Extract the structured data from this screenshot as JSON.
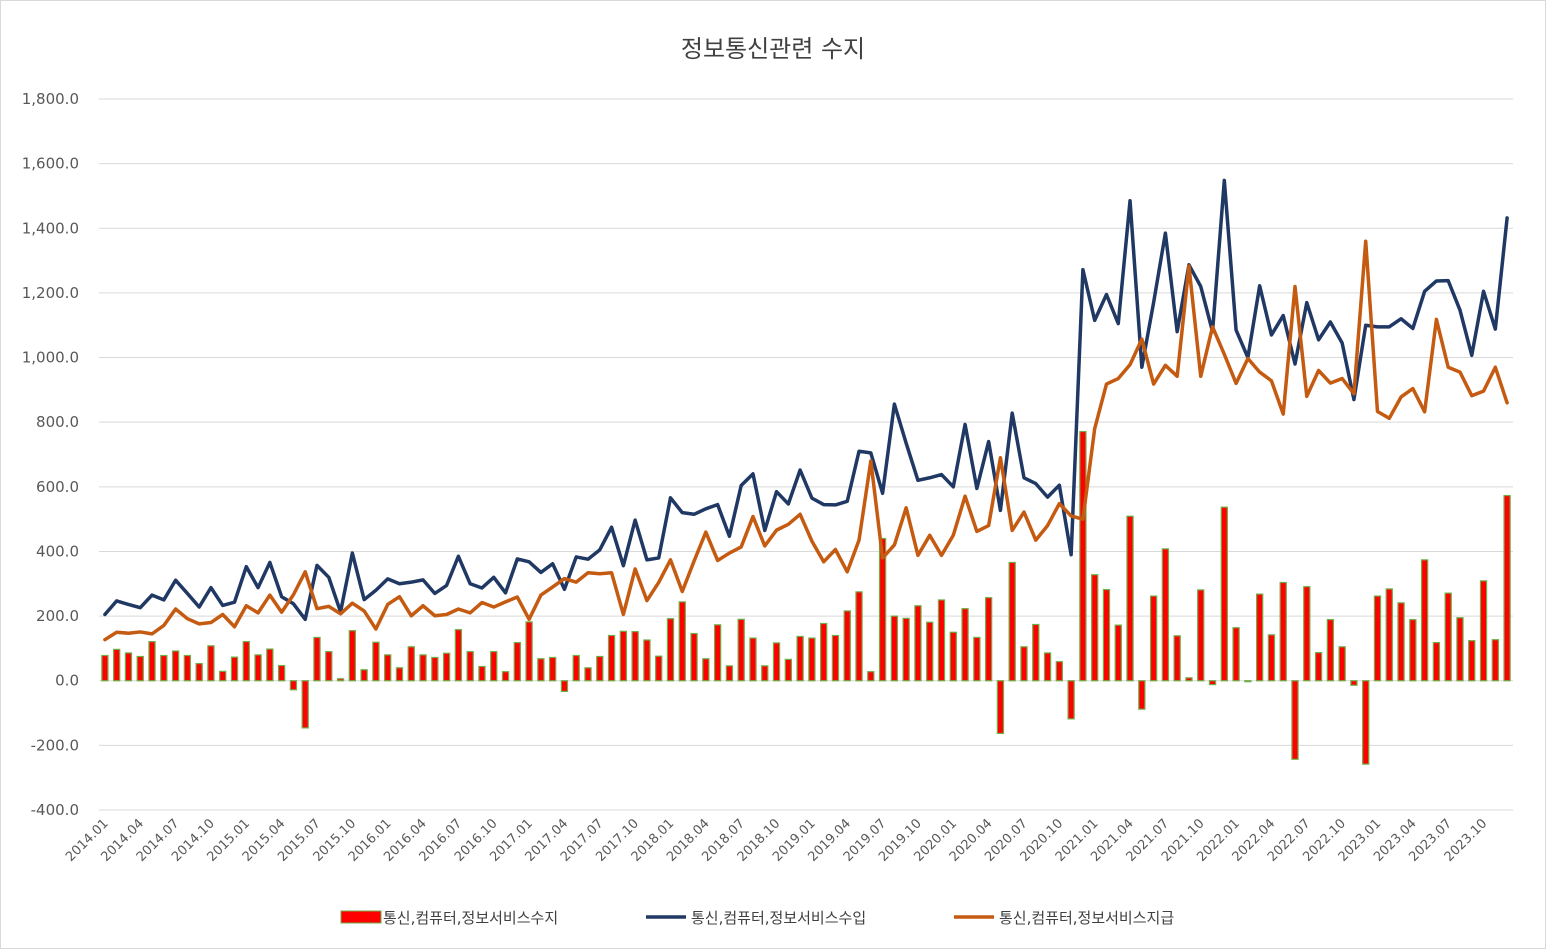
{
  "chart_data": {
    "type": "bar+line",
    "title": "정보통신관련 수지",
    "ylim": [
      -400,
      1800
    ],
    "ystep": 200,
    "ytick_labels": [
      "-400.0",
      "-200.0",
      "0.0",
      "200.0",
      "400.0",
      "600.0",
      "800.0",
      "1,000.0",
      "1,200.0",
      "1,400.0",
      "1,600.0",
      "1,800.0"
    ],
    "x": [
      "2014.01",
      "2014.02",
      "2014.03",
      "2014.04",
      "2014.05",
      "2014.06",
      "2014.07",
      "2014.08",
      "2014.09",
      "2014.10",
      "2014.11",
      "2014.12",
      "2015.01",
      "2015.02",
      "2015.03",
      "2015.04",
      "2015.05",
      "2015.06",
      "2015.07",
      "2015.08",
      "2015.09",
      "2015.10",
      "2015.11",
      "2015.12",
      "2016.01",
      "2016.02",
      "2016.03",
      "2016.04",
      "2016.05",
      "2016.06",
      "2016.07",
      "2016.08",
      "2016.09",
      "2016.10",
      "2016.11",
      "2016.12",
      "2017.01",
      "2017.02",
      "2017.03",
      "2017.04",
      "2017.05",
      "2017.06",
      "2017.07",
      "2017.08",
      "2017.09",
      "2017.10",
      "2017.11",
      "2017.12",
      "2018.01",
      "2018.02",
      "2018.03",
      "2018.04",
      "2018.05",
      "2018.06",
      "2018.07",
      "2018.08",
      "2018.09",
      "2018.10",
      "2018.11",
      "2018.12",
      "2019.01",
      "2019.02",
      "2019.03",
      "2019.04",
      "2019.05",
      "2019.06",
      "2019.07",
      "2019.08",
      "2019.09",
      "2019.10",
      "2019.11",
      "2019.12",
      "2020.01",
      "2020.02",
      "2020.03",
      "2020.04",
      "2020.05",
      "2020.06",
      "2020.07",
      "2020.08",
      "2020.09",
      "2020.10",
      "2020.11",
      "2020.12",
      "2021.01",
      "2021.02",
      "2021.03",
      "2021.04",
      "2021.05",
      "2021.06",
      "2021.07",
      "2021.08",
      "2021.09",
      "2021.10",
      "2021.11",
      "2021.12",
      "2022.01",
      "2022.02",
      "2022.03",
      "2022.04",
      "2022.05",
      "2022.06",
      "2022.07",
      "2022.08",
      "2022.09",
      "2022.10",
      "2022.11",
      "2022.12",
      "2023.01",
      "2023.02",
      "2023.03",
      "2023.04",
      "2023.05",
      "2023.06",
      "2023.07",
      "2023.08",
      "2023.09",
      "2023.10",
      "2023.11",
      "2023.12"
    ],
    "x_tick_labels": [
      "2014.01",
      "2014.04",
      "2014.07",
      "2014.10",
      "2015.01",
      "2015.04",
      "2015.07",
      "2015.10",
      "2016.01",
      "2016.04",
      "2016.07",
      "2016.10",
      "2017.01",
      "2017.04",
      "2017.07",
      "2017.10",
      "2018.01",
      "2018.04",
      "2018.07",
      "2018.10",
      "2019.01",
      "2019.04",
      "2019.07",
      "2019.10",
      "2020.01",
      "2020.04",
      "2020.07",
      "2020.10",
      "2021.01",
      "2021.04",
      "2021.07",
      "2021.10",
      "2022.01",
      "2022.04",
      "2022.07",
      "2022.10",
      "2023.01",
      "2023.04",
      "2023.07",
      "2023.10"
    ],
    "series": [
      {
        "name": "통신,컴퓨터,정보서비스수지",
        "kind": "bar",
        "color": "#ff0000",
        "edge": "#70ad47",
        "values": [
          78,
          97,
          86,
          75,
          121,
          78,
          92,
          78,
          53,
          108,
          29,
          73,
          121,
          80,
          98,
          47,
          -28,
          -146,
          134,
          90,
          6,
          155,
          34,
          119,
          80,
          40,
          105,
          80,
          72,
          85,
          158,
          90,
          44,
          90,
          28,
          118,
          182,
          68,
          72,
          -33,
          78,
          40,
          75,
          140,
          153,
          152,
          126,
          76,
          192,
          244,
          146,
          68,
          173,
          46,
          190,
          132,
          46,
          117,
          66,
          137,
          132,
          177,
          140,
          216,
          275,
          28,
          440,
          200,
          193,
          232,
          181,
          250,
          150,
          223,
          134,
          257,
          -163,
          366,
          105,
          174,
          86,
          59,
          -118,
          771,
          328,
          282,
          172,
          509,
          -88,
          262,
          408,
          139,
          9,
          281,
          -12,
          537,
          164,
          -3,
          268,
          142,
          304,
          -243,
          291,
          87,
          189,
          105,
          -14,
          -258,
          262,
          284,
          241,
          189,
          374,
          118,
          271,
          195,
          124,
          309,
          127,
          573
        ]
      },
      {
        "name": "통신,컴퓨터,정보서비스수입",
        "kind": "line",
        "color": "#203864",
        "values": [
          205,
          247,
          236,
          226,
          265,
          250,
          311,
          270,
          228,
          288,
          233,
          243,
          353,
          288,
          366,
          260,
          238,
          190,
          357,
          320,
          213,
          395,
          251,
          280,
          315,
          300,
          305,
          312,
          270,
          295,
          385,
          300,
          287,
          320,
          272,
          377,
          368,
          335,
          362,
          283,
          383,
          376,
          405,
          475,
          356,
          497,
          374,
          380,
          566,
          520,
          515,
          532,
          545,
          447,
          604,
          640,
          465,
          585,
          547,
          652,
          565,
          545,
          544,
          555,
          710,
          705,
          580,
          856,
          735,
          620,
          628,
          638,
          600,
          793,
          595,
          740,
          527,
          828,
          628,
          610,
          568,
          605,
          390,
          1272,
          1115,
          1195,
          1105,
          1485,
          970,
          1170,
          1385,
          1080,
          1287,
          1220,
          1080,
          1548,
          1085,
          1000,
          1222,
          1070,
          1130,
          980,
          1170,
          1055,
          1110,
          1045,
          870,
          1100,
          1095,
          1095,
          1120,
          1090,
          1205,
          1237,
          1238,
          1147,
          1007,
          1205,
          1088,
          1432
        ]
      },
      {
        "name": "통신,컴퓨터,정보서비스지급",
        "kind": "line",
        "color": "#c55a11",
        "values": [
          127,
          150,
          147,
          151,
          145,
          171,
          222,
          192,
          176,
          180,
          205,
          167,
          232,
          210,
          265,
          212,
          266,
          337,
          223,
          230,
          207,
          240,
          216,
          160,
          236,
          260,
          201,
          232,
          201,
          205,
          222,
          210,
          242,
          228,
          244,
          259,
          190,
          265,
          290,
          316,
          305,
          334,
          331,
          334,
          205,
          346,
          248,
          304,
          374,
          276,
          370,
          460,
          372,
          395,
          414,
          508,
          417,
          466,
          484,
          515,
          432,
          368,
          406,
          337,
          435,
          680,
          380,
          420,
          535,
          388,
          450,
          388,
          450,
          571,
          462,
          480,
          690,
          465,
          522,
          435,
          480,
          548,
          510,
          500,
          780,
          918,
          935,
          978,
          1057,
          918,
          976,
          942,
          1283,
          942,
          1095,
          1010,
          920,
          997,
          955,
          928,
          825,
          1220,
          880,
          960,
          921,
          935,
          888,
          1360,
          833,
          812,
          878,
          904,
          832,
          1118,
          970,
          955,
          882,
          896,
          970,
          860
        ]
      }
    ]
  }
}
